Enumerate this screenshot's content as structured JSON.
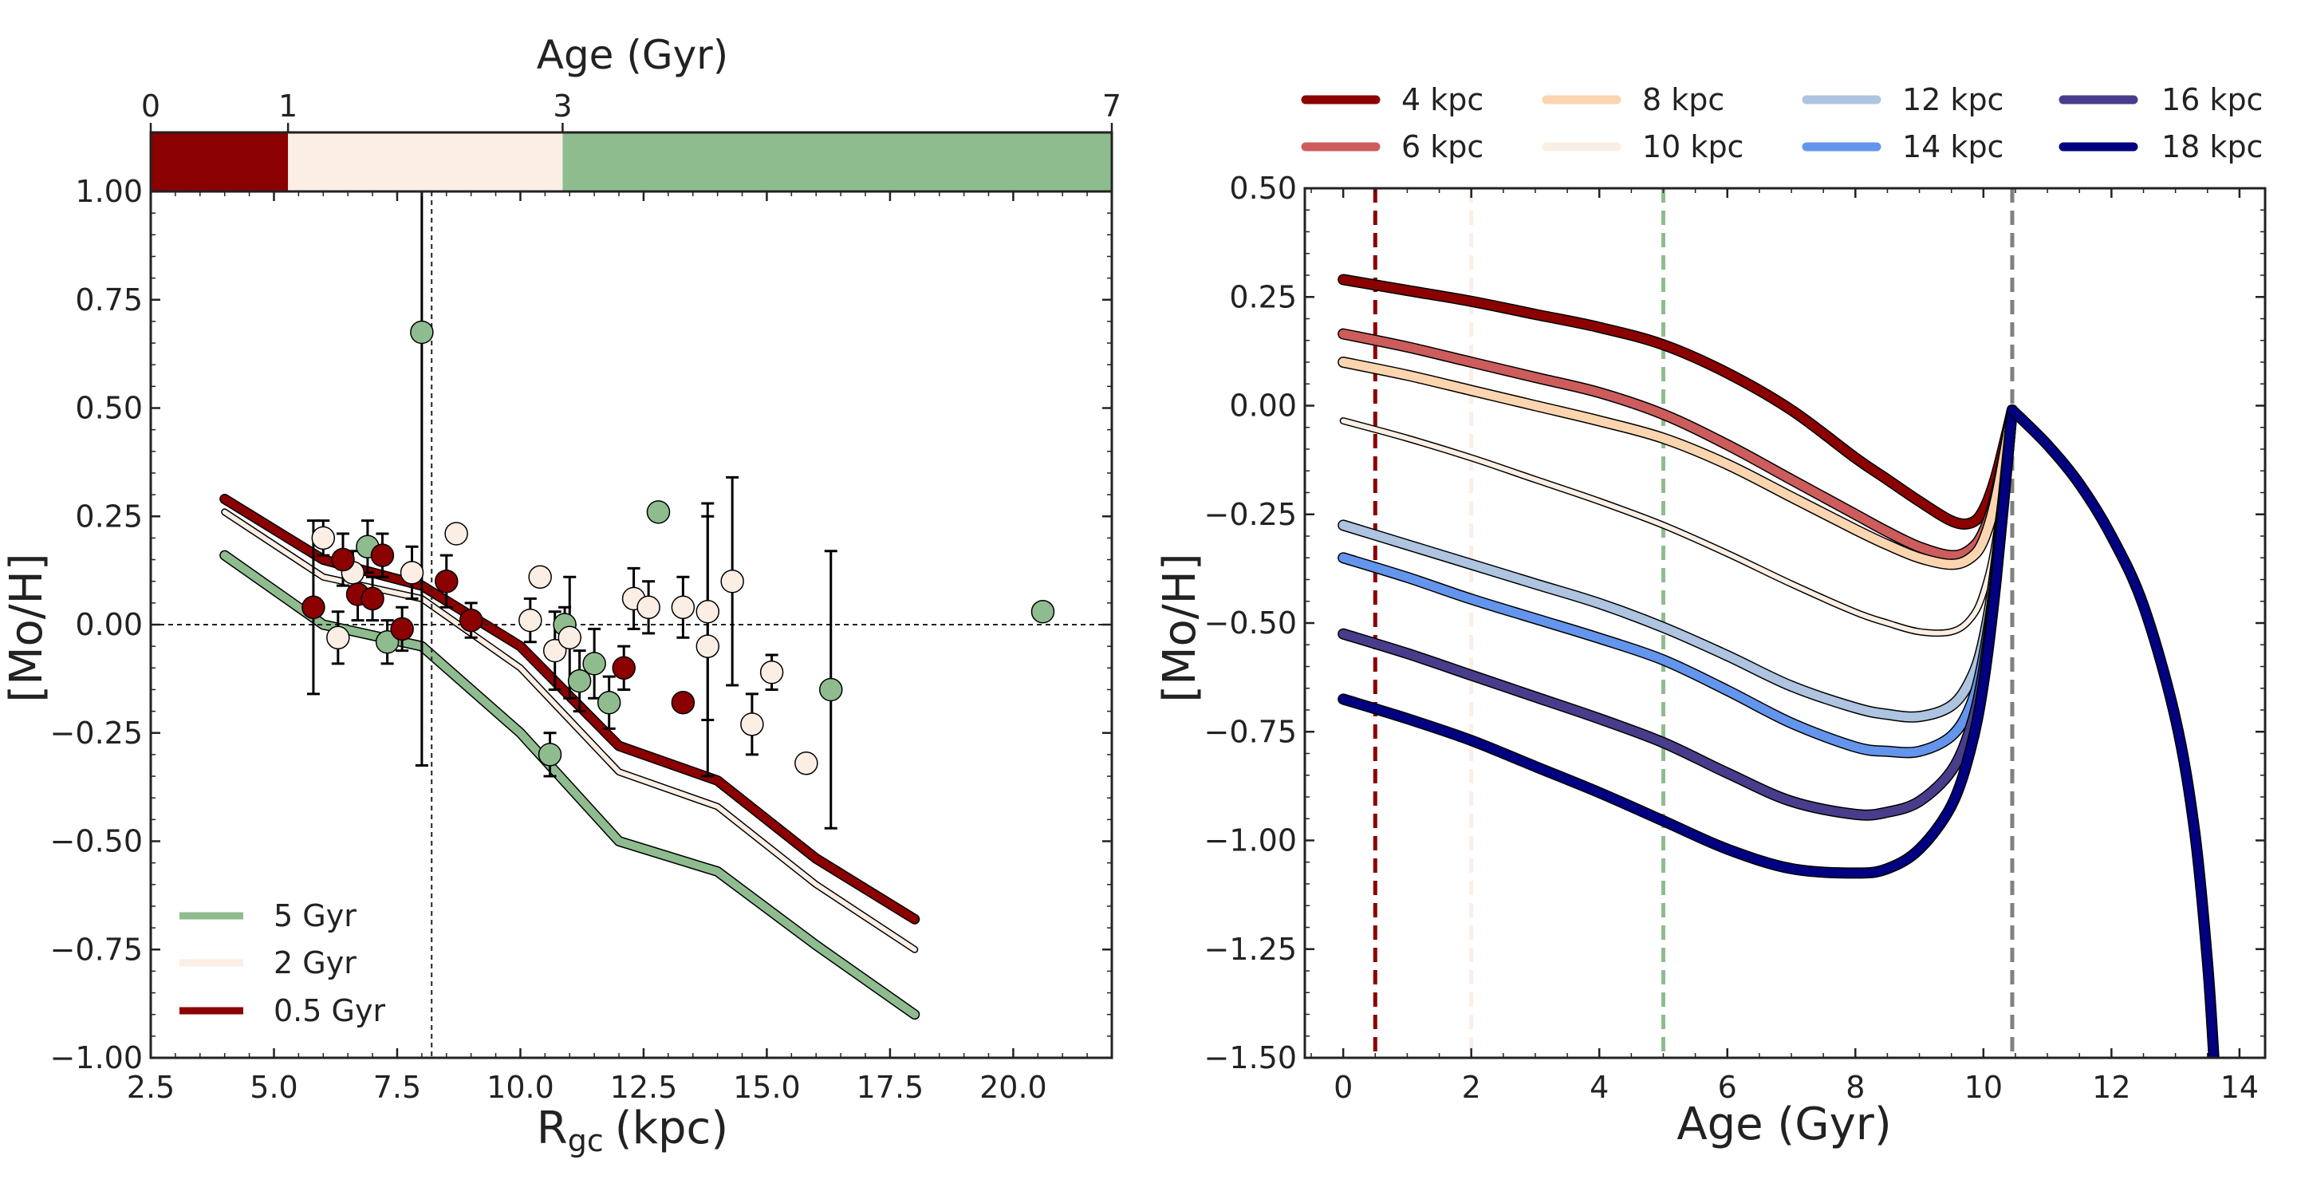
{
  "colors": {
    "dark_red": "#8b0000",
    "indian_red": "#cd5c5c",
    "peach": "#fbd5b0",
    "linen": "#fbeee4",
    "light_steel": "#aec4e0",
    "cornflower": "#6495ed",
    "dark_slate": "#483d8b",
    "navy": "#000080",
    "green": "#8fbc8f",
    "grey": "#808080",
    "black": "#000000"
  },
  "chart_data": [
    {
      "type": "scatter",
      "name": "left-panel",
      "title": "",
      "xlabel": "R",
      "xlabel_sub": "gc",
      "xlabel_unit": "(kpc)",
      "ylabel": "[Mo/H]",
      "xlim": [
        2.5,
        22.0
      ],
      "ylim": [
        -1.0,
        1.0
      ],
      "xticks": [
        2.5,
        5.0,
        7.5,
        10.0,
        12.5,
        15.0,
        17.5,
        20.0
      ],
      "xtick_labels": [
        "2.5",
        "5.0",
        "7.5",
        "10.0",
        "12.5",
        "15.0",
        "17.5",
        "20.0"
      ],
      "yticks": [
        -1.0,
        -0.75,
        -0.5,
        -0.25,
        0.0,
        0.25,
        0.5,
        0.75,
        1.0
      ],
      "ytick_labels": [
        "−1.00",
        "−0.75",
        "−0.50",
        "−0.25",
        "0.00",
        "0.25",
        "0.50",
        "0.75",
        "1.00"
      ],
      "reference_lines": {
        "hline_y": 0.0,
        "vline_x": 8.2
      },
      "age_bar": {
        "title": "Age (Gyr)",
        "range": [
          0,
          7
        ],
        "tick_values": [
          0,
          1,
          3,
          7
        ],
        "tick_labels": [
          "0",
          "1",
          "3",
          "7"
        ],
        "segments": [
          {
            "from": 0,
            "to": 1,
            "color": "#8b0000"
          },
          {
            "from": 1,
            "to": 3,
            "color": "#fbeee4"
          },
          {
            "from": 3,
            "to": 7,
            "color": "#8fbc8f"
          }
        ]
      },
      "legend_position": "lower-left",
      "legend": [
        {
          "label": "5 Gyr",
          "color": "#8fbc8f"
        },
        {
          "label": "2 Gyr",
          "color": "#fbeee4"
        },
        {
          "label": "0.5 Gyr",
          "color": "#8b0000"
        }
      ],
      "lines": [
        {
          "name": "5 Gyr",
          "color": "#8fbc8f",
          "width": "thick",
          "x": [
            4,
            6,
            8,
            10,
            12,
            14,
            16,
            18
          ],
          "y": [
            0.16,
            0.0,
            -0.05,
            -0.25,
            -0.5,
            -0.57,
            -0.74,
            -0.9
          ]
        },
        {
          "name": "2 Gyr",
          "color": "#fbeee4",
          "width": "thin",
          "x": [
            4,
            6,
            8,
            10,
            12,
            14,
            16,
            18
          ],
          "y": [
            0.26,
            0.11,
            0.06,
            -0.1,
            -0.34,
            -0.42,
            -0.6,
            -0.75
          ]
        },
        {
          "name": "0.5 Gyr",
          "color": "#8b0000",
          "width": "thick",
          "x": [
            4,
            6,
            8,
            10,
            12,
            14,
            16,
            18
          ],
          "y": [
            0.29,
            0.15,
            0.09,
            -0.05,
            -0.28,
            -0.36,
            -0.54,
            -0.68
          ]
        }
      ],
      "points": [
        {
          "x": 8.0,
          "y": 0.675,
          "err": 1.0,
          "color": "#8fbc8f"
        },
        {
          "x": 12.8,
          "y": 0.26,
          "err": 0.0,
          "color": "#8fbc8f"
        },
        {
          "x": 20.6,
          "y": 0.03,
          "err": 0.0,
          "color": "#8fbc8f"
        },
        {
          "x": 6.9,
          "y": 0.18,
          "err": 0.06,
          "color": "#8fbc8f"
        },
        {
          "x": 7.3,
          "y": -0.04,
          "err": 0.05,
          "color": "#8fbc8f"
        },
        {
          "x": 10.6,
          "y": -0.3,
          "err": 0.05,
          "color": "#8fbc8f"
        },
        {
          "x": 10.9,
          "y": 0.0,
          "err": 0.04,
          "color": "#8fbc8f"
        },
        {
          "x": 11.2,
          "y": -0.13,
          "err": 0.07,
          "color": "#8fbc8f"
        },
        {
          "x": 11.5,
          "y": -0.09,
          "err": 0.08,
          "color": "#8fbc8f"
        },
        {
          "x": 11.8,
          "y": -0.18,
          "err": 0.06,
          "color": "#8fbc8f"
        },
        {
          "x": 16.3,
          "y": -0.15,
          "err": 0.32,
          "color": "#8fbc8f"
        },
        {
          "x": 6.0,
          "y": 0.2,
          "err": 0.04,
          "color": "#fbeee4"
        },
        {
          "x": 6.3,
          "y": -0.03,
          "err": 0.06,
          "color": "#fbeee4"
        },
        {
          "x": 6.6,
          "y": 0.12,
          "err": 0.05,
          "color": "#fbeee4"
        },
        {
          "x": 7.8,
          "y": 0.12,
          "err": 0.06,
          "color": "#fbeee4"
        },
        {
          "x": 8.7,
          "y": 0.21,
          "err": 0.0,
          "color": "#fbeee4"
        },
        {
          "x": 10.2,
          "y": 0.01,
          "err": 0.05,
          "color": "#fbeee4"
        },
        {
          "x": 10.4,
          "y": 0.11,
          "err": 0.0,
          "color": "#fbeee4"
        },
        {
          "x": 10.7,
          "y": -0.06,
          "err": 0.09,
          "color": "#fbeee4"
        },
        {
          "x": 11.0,
          "y": -0.03,
          "err": 0.14,
          "color": "#fbeee4"
        },
        {
          "x": 12.3,
          "y": 0.06,
          "err": 0.07,
          "color": "#fbeee4"
        },
        {
          "x": 12.6,
          "y": 0.04,
          "err": 0.06,
          "color": "#fbeee4"
        },
        {
          "x": 13.3,
          "y": 0.04,
          "err": 0.07,
          "color": "#fbeee4"
        },
        {
          "x": 13.8,
          "y": 0.03,
          "err": 0.25,
          "color": "#fbeee4"
        },
        {
          "x": 13.8,
          "y": -0.05,
          "err": 0.3,
          "color": "#fbeee4"
        },
        {
          "x": 14.3,
          "y": 0.1,
          "err": 0.24,
          "color": "#fbeee4"
        },
        {
          "x": 14.7,
          "y": -0.23,
          "err": 0.07,
          "color": "#fbeee4"
        },
        {
          "x": 15.1,
          "y": -0.11,
          "err": 0.04,
          "color": "#fbeee4"
        },
        {
          "x": 15.8,
          "y": -0.32,
          "err": 0.0,
          "color": "#fbeee4"
        },
        {
          "x": 5.8,
          "y": 0.04,
          "err": 0.2,
          "color": "#8b0000"
        },
        {
          "x": 6.4,
          "y": 0.15,
          "err": 0.06,
          "color": "#8b0000"
        },
        {
          "x": 6.7,
          "y": 0.07,
          "err": 0.06,
          "color": "#8b0000"
        },
        {
          "x": 7.0,
          "y": 0.06,
          "err": 0.05,
          "color": "#8b0000"
        },
        {
          "x": 7.2,
          "y": 0.16,
          "err": 0.05,
          "color": "#8b0000"
        },
        {
          "x": 7.6,
          "y": -0.01,
          "err": 0.05,
          "color": "#8b0000"
        },
        {
          "x": 8.5,
          "y": 0.1,
          "err": 0.06,
          "color": "#8b0000"
        },
        {
          "x": 9.0,
          "y": 0.01,
          "err": 0.04,
          "color": "#8b0000"
        },
        {
          "x": 12.1,
          "y": -0.1,
          "err": 0.05,
          "color": "#8b0000"
        },
        {
          "x": 13.3,
          "y": -0.18,
          "err": 0.0,
          "color": "#8b0000"
        }
      ]
    },
    {
      "type": "line",
      "name": "right-panel",
      "title": "",
      "xlabel": "Age (Gyr)",
      "ylabel": "[Mo/H]",
      "xlim": [
        -0.6,
        14.4
      ],
      "ylim": [
        -1.5,
        0.5
      ],
      "xticks": [
        0,
        2,
        4,
        6,
        8,
        10,
        12,
        14
      ],
      "xtick_labels": [
        "0",
        "2",
        "4",
        "6",
        "8",
        "10",
        "12",
        "14"
      ],
      "yticks": [
        -1.5,
        -1.25,
        -1.0,
        -0.75,
        -0.5,
        -0.25,
        0.0,
        0.25,
        0.5
      ],
      "ytick_labels": [
        "−1.50",
        "−1.25",
        "−1.00",
        "−0.75",
        "−0.50",
        "−0.25",
        "0.00",
        "0.25",
        "0.50"
      ],
      "vlines": [
        {
          "x": 0.5,
          "color": "#8b0000"
        },
        {
          "x": 2.0,
          "color": "#fbeee4"
        },
        {
          "x": 5.0,
          "color": "#8fbc8f"
        },
        {
          "x": 10.45,
          "color": "#808080"
        }
      ],
      "legend_position": "above",
      "peak": {
        "x": 10.45,
        "y": -0.01
      },
      "tail": {
        "x": [
          10.45,
          11.0,
          11.5,
          12.0,
          12.5,
          13.0,
          13.3,
          13.5,
          13.6
        ],
        "y": [
          -0.01,
          -0.09,
          -0.18,
          -0.3,
          -0.46,
          -0.72,
          -0.98,
          -1.28,
          -1.5
        ]
      },
      "series": [
        {
          "name": "4 kpc",
          "color": "#8b0000",
          "x": [
            0,
            1,
            2,
            3,
            4,
            5,
            6,
            7,
            8,
            8.5,
            9,
            9.5,
            9.8,
            10.0,
            10.2
          ],
          "y": [
            0.29,
            0.265,
            0.24,
            0.21,
            0.18,
            0.14,
            0.075,
            -0.01,
            -0.12,
            -0.17,
            -0.22,
            -0.265,
            -0.27,
            -0.24,
            -0.16
          ]
        },
        {
          "name": "6 kpc",
          "color": "#cd5c5c",
          "x": [
            0,
            1,
            2,
            3,
            4,
            5,
            6,
            7,
            8,
            8.5,
            9,
            9.5,
            9.8,
            10.0,
            10.2
          ],
          "y": [
            0.165,
            0.135,
            0.1,
            0.065,
            0.03,
            -0.02,
            -0.09,
            -0.17,
            -0.25,
            -0.29,
            -0.325,
            -0.345,
            -0.33,
            -0.29,
            -0.2
          ]
        },
        {
          "name": "8 kpc",
          "color": "#fbd5b0",
          "x": [
            0,
            1,
            2,
            3,
            4,
            5,
            6,
            7,
            8,
            8.5,
            9,
            9.5,
            9.8,
            10.0,
            10.2
          ],
          "y": [
            0.1,
            0.07,
            0.035,
            0.0,
            -0.035,
            -0.075,
            -0.135,
            -0.21,
            -0.285,
            -0.32,
            -0.35,
            -0.365,
            -0.35,
            -0.31,
            -0.21
          ]
        },
        {
          "name": "10 kpc",
          "color": "#fbeee4",
          "x": [
            0,
            1,
            2,
            3,
            4,
            5,
            6,
            7,
            8,
            8.5,
            9,
            9.5,
            9.8,
            10.0,
            10.2
          ],
          "y": [
            -0.035,
            -0.075,
            -0.12,
            -0.17,
            -0.22,
            -0.275,
            -0.34,
            -0.41,
            -0.475,
            -0.5,
            -0.52,
            -0.52,
            -0.49,
            -0.43,
            -0.3
          ]
        },
        {
          "name": "12 kpc",
          "color": "#aec4e0",
          "x": [
            0,
            1,
            2,
            3,
            4,
            5,
            6,
            7,
            8,
            8.5,
            9,
            9.5,
            9.8,
            10.0,
            10.2
          ],
          "y": [
            -0.275,
            -0.32,
            -0.365,
            -0.41,
            -0.455,
            -0.51,
            -0.575,
            -0.645,
            -0.695,
            -0.71,
            -0.715,
            -0.69,
            -0.63,
            -0.54,
            -0.36
          ]
        },
        {
          "name": "14 kpc",
          "color": "#6495ed",
          "x": [
            0,
            1,
            2,
            3,
            4,
            5,
            6,
            7,
            8,
            8.5,
            9,
            9.5,
            9.8,
            10.0,
            10.2
          ],
          "y": [
            -0.35,
            -0.395,
            -0.445,
            -0.49,
            -0.535,
            -0.585,
            -0.655,
            -0.73,
            -0.785,
            -0.795,
            -0.795,
            -0.76,
            -0.69,
            -0.58,
            -0.38
          ]
        },
        {
          "name": "16 kpc",
          "color": "#483d8b",
          "x": [
            0,
            1,
            2,
            3,
            4,
            5,
            6,
            7,
            8,
            8.5,
            9,
            9.5,
            9.8,
            10.0,
            10.2
          ],
          "y": [
            -0.525,
            -0.57,
            -0.62,
            -0.67,
            -0.72,
            -0.775,
            -0.845,
            -0.91,
            -0.94,
            -0.935,
            -0.91,
            -0.84,
            -0.74,
            -0.61,
            -0.39
          ]
        },
        {
          "name": "18 kpc",
          "color": "#000080",
          "x": [
            0,
            1,
            2,
            3,
            4,
            5,
            6,
            7,
            8,
            8.5,
            9,
            9.5,
            9.8,
            10.0,
            10.2
          ],
          "y": [
            -0.675,
            -0.72,
            -0.77,
            -0.83,
            -0.89,
            -0.955,
            -1.02,
            -1.065,
            -1.075,
            -1.065,
            -1.02,
            -0.92,
            -0.79,
            -0.64,
            -0.4
          ]
        }
      ]
    }
  ]
}
